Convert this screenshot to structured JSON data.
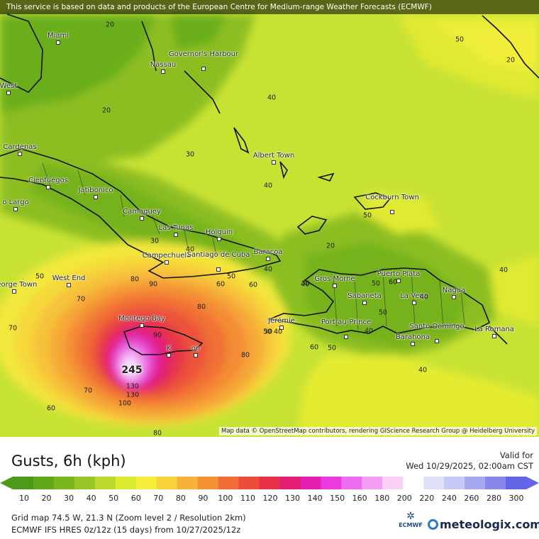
{
  "banner": "This service is based on data and products of the European Centre for Medium-range Weather Forecasts (ECMWF)",
  "attribution": "Map data © OpenStreetMap contributors, rendering GIScience Research Group @ Heidelberg University",
  "places": [
    "Miami",
    "Nassau",
    "Governor's Harbour",
    "West",
    "Cardenas",
    "Cienfuegos",
    "Jatibonico",
    "o Largo",
    "Camaguey",
    "Las Tunas",
    "Holguin",
    "Albert Town",
    "Cockburn Town",
    "Campechuela",
    "Santiago de Cuba",
    "Baracoa",
    "George Town",
    "West End",
    "Montego Bay",
    "Gros Morne",
    "Puerto Plata",
    "Sabaneta",
    "La Vega",
    "Nagua",
    "Jérémie",
    "Port-au-Prince",
    "Santo Domingo",
    "La Romana",
    "Barahona",
    "K",
    "on"
  ],
  "contour_labels": [
    "20",
    "50",
    "40",
    "20",
    "20",
    "30",
    "40",
    "30",
    "50",
    "20",
    "50",
    "50",
    "40",
    "70",
    "80",
    "90",
    "80",
    "60",
    "60",
    "40",
    "40",
    "30",
    "30",
    "50",
    "50",
    "40",
    "40",
    "90",
    "80",
    "60",
    "50",
    "40",
    "70",
    "60",
    "100",
    "130",
    "130",
    "80",
    "70",
    "60",
    "50",
    "40",
    "40"
  ],
  "max_value": "245",
  "legend": {
    "title": "Gusts, 6h (kph)",
    "valid_label": "Valid for",
    "valid_date": "Wed 10/29/2025, 02:00am CST",
    "ticks": [
      "10",
      "20",
      "30",
      "40",
      "50",
      "60",
      "70",
      "80",
      "90",
      "100",
      "110",
      "120",
      "130",
      "140",
      "150",
      "160",
      "180",
      "200",
      "220",
      "240",
      "260",
      "280",
      "300"
    ],
    "colors": [
      "#4c9a1a",
      "#62a81a",
      "#7ab61e",
      "#98c626",
      "#bcd82c",
      "#dcea30",
      "#f4ee3a",
      "#f8d23a",
      "#f6b23a",
      "#f49236",
      "#f06e36",
      "#ec4c3a",
      "#e83048",
      "#e41c72",
      "#e41cb0",
      "#e83ce0",
      "#ee6cf0",
      "#f49ef4",
      "#fad0f8",
      "#ffffff",
      "#e0e0f8",
      "#c8c8f4",
      "#a8a8f0",
      "#8888ec",
      "#6464e6"
    ],
    "info_line1": "Grid map 74.5 W, 21.3 N (Zoom level 2 / Resolution 2km)",
    "info_line2": "ECMWF IFS HRES 0z/12z (15 days) from 10/27/2025/12z",
    "ecmwf_logo": "ECMWF",
    "meteologix_logo": "meteologix.com"
  }
}
